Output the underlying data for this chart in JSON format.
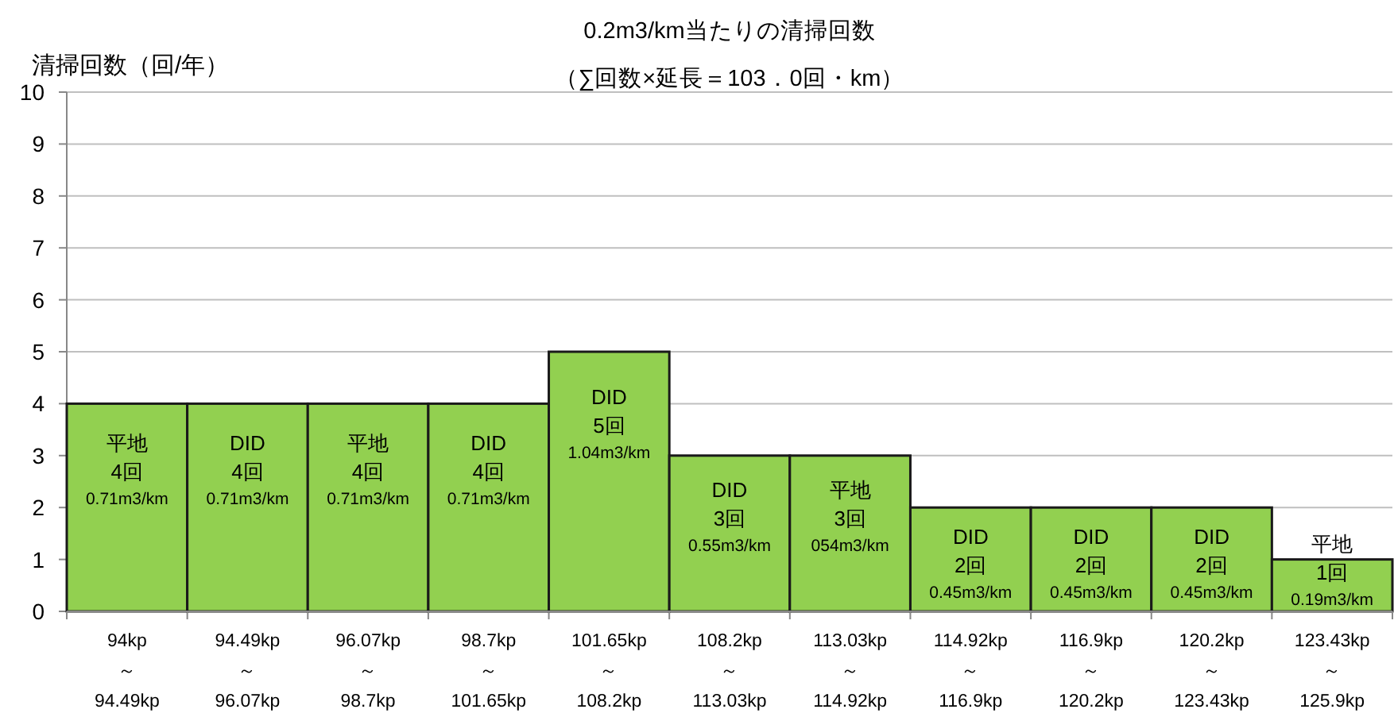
{
  "chart_data": {
    "type": "bar",
    "title": "0.2m3/km当たりの清掃回数",
    "subtitle": "（∑回数×延長＝103．0回・km）",
    "ylabel": "清掃回数（回/年）",
    "categories": [
      "94kp\n～\n94.49kp",
      "94.49kp\n～\n96.07kp",
      "96.07kp\n～\n98.7kp",
      "98.7kp\n～\n101.65kp",
      "101.65kp\n～\n108.2kp",
      "108.2kp\n～\n113.03kp",
      "113.03kp\n～\n114.92kp",
      "114.92kp\n～\n116.9kp",
      "116.9kp\n～\n120.2kp",
      "120.2kp\n～\n123.43kp",
      "123.43kp\n～\n125.9kp"
    ],
    "values": [
      4,
      4,
      4,
      4,
      5,
      3,
      3,
      2,
      2,
      2,
      1
    ],
    "value_labels": [
      "平地\n4回\n0.71m3/km",
      "DID\n4回\n0.71m3/km",
      "平地\n4回\n0.71m3/km",
      "DID\n4回\n0.71m3/km",
      "DID\n5回\n1.04m3/km",
      "DID\n3回\n0.55m3/km",
      "平地\n3回\n054m3/km",
      "DID\n2回\n0.45m3/km",
      "DID\n2回\n0.45m3/km",
      "DID\n2回\n0.45m3/km",
      "平地\n1回\n0.19m3/km"
    ],
    "color": "#92d050",
    "ylim": [
      0,
      10
    ],
    "yticks": [
      0,
      1,
      2,
      3,
      4,
      5,
      6,
      7,
      8,
      9,
      10
    ],
    "grid": "y"
  }
}
